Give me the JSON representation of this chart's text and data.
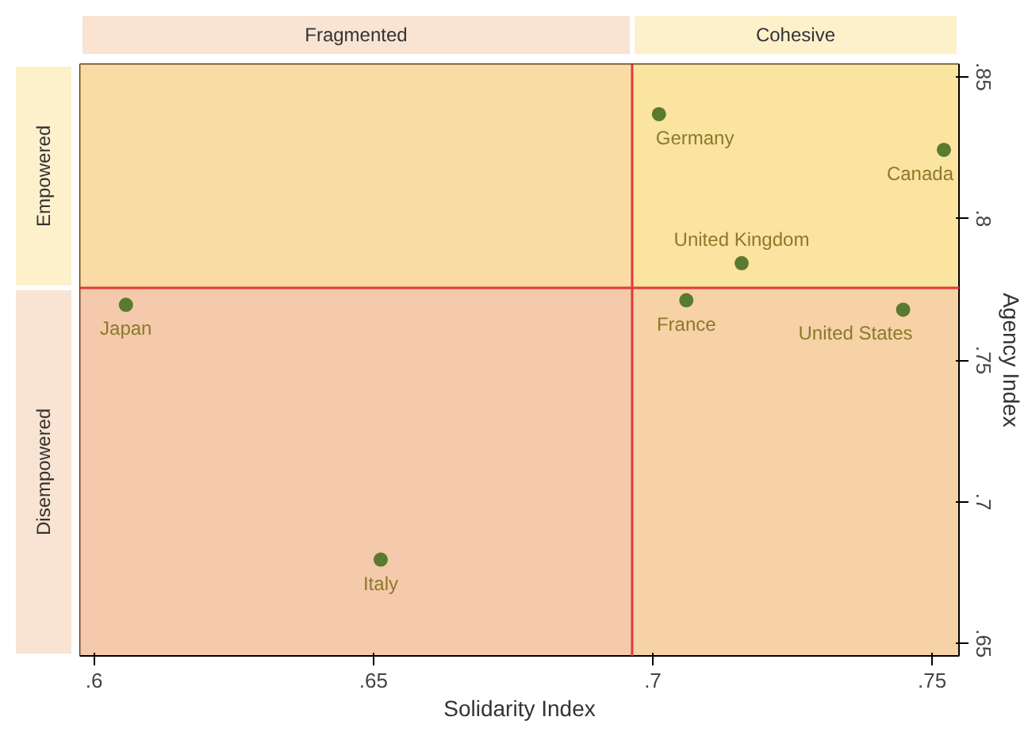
{
  "chart_data": {
    "type": "scatter",
    "xlabel": "Solidarity Index",
    "ylabel": "Agency Index",
    "x": [
      0.7011,
      0.7521,
      0.7159,
      0.706,
      0.7448,
      0.6057,
      0.6513
    ],
    "values": [
      0.8368,
      0.8242,
      0.7842,
      0.7711,
      0.7678,
      0.7695,
      0.6796
    ],
    "color": "#5a7a30",
    "marker": "circle",
    "annotations": [
      {
        "text": "Germany",
        "x": 0.7011,
        "y": 0.8368
      },
      {
        "text": "Canada",
        "x": 0.7521,
        "y": 0.8242
      },
      {
        "text": "United Kingdom",
        "x": 0.7159,
        "y": 0.7842
      },
      {
        "text": "France",
        "x": 0.706,
        "y": 0.7711
      },
      {
        "text": "United States",
        "x": 0.7448,
        "y": 0.7678
      },
      {
        "text": "Japan",
        "x": 0.6057,
        "y": 0.7695
      },
      {
        "text": "Italy",
        "x": 0.6513,
        "y": 0.6796
      }
    ],
    "xlim": [
      0.5975,
      0.7548
    ],
    "ylim": [
      0.6456,
      0.8544
    ],
    "xticks": [
      {
        "value": 0.6,
        "label": ".6"
      },
      {
        "value": 0.65,
        "label": ".65"
      },
      {
        "value": 0.7,
        "label": ".7"
      },
      {
        "value": 0.75,
        "label": ".75"
      }
    ],
    "yticks": [
      {
        "value": 0.65,
        "label": ".65"
      },
      {
        "value": 0.7,
        "label": ".7"
      },
      {
        "value": 0.75,
        "label": ".75"
      },
      {
        "value": 0.8,
        "label": ".8"
      },
      {
        "value": 0.85,
        "label": ".85"
      }
    ],
    "ref_lines": [
      {
        "axis": "x",
        "value": 0.6963,
        "color": "#e03a3a"
      },
      {
        "axis": "y",
        "value": 0.7755,
        "color": "#e03a3a"
      }
    ],
    "bands": [
      {
        "axis": "x",
        "from": 0.5975,
        "to": 0.6963,
        "label": "Fragmented",
        "color": "#f1b88f"
      },
      {
        "axis": "x",
        "from": 0.6963,
        "to": 0.7548,
        "label": "Cohesive",
        "color": "#f9dc80"
      },
      {
        "axis": "y",
        "from": 0.7755,
        "to": 0.8544,
        "label": "Empowered",
        "color": "#f9dc80"
      },
      {
        "axis": "y",
        "from": 0.6456,
        "to": 0.7755,
        "label": "Disempowered",
        "color": "#f1b88f"
      }
    ],
    "grid": false
  }
}
